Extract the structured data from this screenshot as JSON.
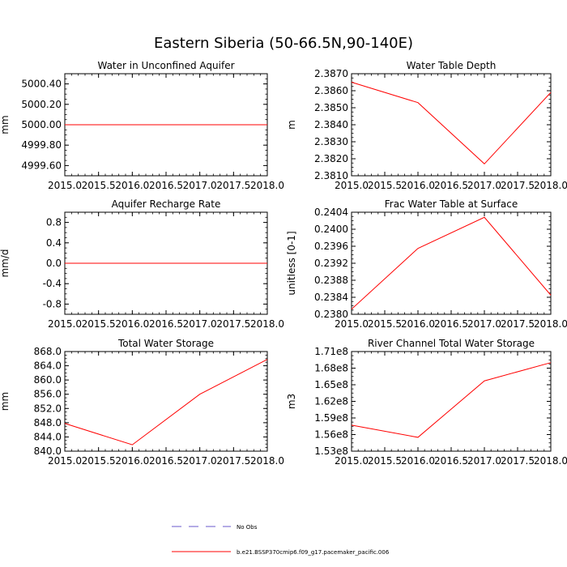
{
  "figure": {
    "title": "Eastern Siberia (50-66.5N,90-140E)"
  },
  "colors": {
    "model_line": "#ff0000",
    "obs_line": "#6a5acd",
    "axis": "#000000",
    "background": "#ffffff"
  },
  "legend": {
    "items": [
      {
        "label": "No Obs",
        "style": "dashed",
        "color": "#6a5acd"
      },
      {
        "label": "b.e21.BSSP370cmip6.f09_g17.pacemaker_pacific.006",
        "style": "solid",
        "color": "#ff0000"
      }
    ]
  },
  "chart_data": [
    {
      "type": "line",
      "title": "Water in Unconfined Aquifer",
      "xlabel": "",
      "ylabel": "mm",
      "xlim": [
        2015.0,
        2018.0
      ],
      "ylim": [
        4999.5,
        5000.5
      ],
      "xticks": [
        "2015.0",
        "2015.5",
        "2016.0",
        "2016.5",
        "2017.0",
        "2017.5",
        "2018.0"
      ],
      "yticks": [
        {
          "value": 4999.6,
          "label": "4999.60"
        },
        {
          "value": 4999.8,
          "label": "4999.80"
        },
        {
          "value": 5000.0,
          "label": "5000.00"
        },
        {
          "value": 5000.2,
          "label": "5000.20"
        },
        {
          "value": 5000.4,
          "label": "5000.40"
        }
      ],
      "series": [
        {
          "x": [
            2015.0,
            2016.0,
            2017.0,
            2018.0
          ],
          "y": [
            5000.0,
            5000.0,
            5000.0,
            5000.0
          ]
        }
      ]
    },
    {
      "type": "line",
      "title": "Water Table Depth",
      "xlabel": "",
      "ylabel": "m",
      "xlim": [
        2015.0,
        2018.0
      ],
      "ylim": [
        2.381,
        2.387
      ],
      "xticks": [
        "2015.0",
        "2015.5",
        "2016.0",
        "2016.5",
        "2017.0",
        "2017.5",
        "2018.0"
      ],
      "yticks": [
        {
          "value": 2.381,
          "label": "2.3810"
        },
        {
          "value": 2.382,
          "label": "2.3820"
        },
        {
          "value": 2.383,
          "label": "2.3830"
        },
        {
          "value": 2.384,
          "label": "2.3840"
        },
        {
          "value": 2.385,
          "label": "2.3850"
        },
        {
          "value": 2.386,
          "label": "2.3860"
        },
        {
          "value": 2.387,
          "label": "2.3870"
        }
      ],
      "series": [
        {
          "x": [
            2015.0,
            2016.0,
            2017.0,
            2018.0
          ],
          "y": [
            2.3865,
            2.3853,
            2.3817,
            2.3859
          ]
        }
      ]
    },
    {
      "type": "line",
      "title": "Aquifer Recharge Rate",
      "xlabel": "",
      "ylabel": "mm/d",
      "xlim": [
        2015.0,
        2018.0
      ],
      "ylim": [
        -1.0,
        1.0
      ],
      "xticks": [
        "2015.0",
        "2015.5",
        "2016.0",
        "2016.5",
        "2017.0",
        "2017.5",
        "2018.0"
      ],
      "yticks": [
        {
          "value": -0.8,
          "label": "-0.8"
        },
        {
          "value": -0.4,
          "label": "-0.4"
        },
        {
          "value": 0.0,
          "label": "0.0"
        },
        {
          "value": 0.4,
          "label": "0.4"
        },
        {
          "value": 0.8,
          "label": "0.8"
        }
      ],
      "series": [
        {
          "x": [
            2015.0,
            2016.0,
            2017.0,
            2018.0
          ],
          "y": [
            0.0,
            0.0,
            0.0,
            0.0
          ]
        }
      ]
    },
    {
      "type": "line",
      "title": "Frac Water Table at Surface",
      "xlabel": "",
      "ylabel": "unitless [0-1]",
      "xlim": [
        2015.0,
        2018.0
      ],
      "ylim": [
        0.238,
        0.2404
      ],
      "xticks": [
        "2015.0",
        "2015.5",
        "2016.0",
        "2016.5",
        "2017.0",
        "2017.5",
        "2018.0"
      ],
      "yticks": [
        {
          "value": 0.238,
          "label": "0.2380"
        },
        {
          "value": 0.2384,
          "label": "0.2384"
        },
        {
          "value": 0.2388,
          "label": "0.2388"
        },
        {
          "value": 0.2392,
          "label": "0.2392"
        },
        {
          "value": 0.2396,
          "label": "0.2396"
        },
        {
          "value": 0.24,
          "label": "0.2400"
        },
        {
          "value": 0.2404,
          "label": "0.2404"
        }
      ],
      "series": [
        {
          "x": [
            2015.0,
            2016.0,
            2017.0,
            2018.0
          ],
          "y": [
            0.23812,
            0.23955,
            0.24028,
            0.23845
          ]
        }
      ]
    },
    {
      "type": "line",
      "title": "Total Water Storage",
      "xlabel": "",
      "ylabel": "mm",
      "xlim": [
        2015.0,
        2018.0
      ],
      "ylim": [
        840.0,
        868.0
      ],
      "xticks": [
        "2015.0",
        "2015.5",
        "2016.0",
        "2016.5",
        "2017.0",
        "2017.5",
        "2018.0"
      ],
      "yticks": [
        {
          "value": 840.0,
          "label": "840.0"
        },
        {
          "value": 844.0,
          "label": "844.0"
        },
        {
          "value": 848.0,
          "label": "848.0"
        },
        {
          "value": 852.0,
          "label": "852.0"
        },
        {
          "value": 856.0,
          "label": "856.0"
        },
        {
          "value": 860.0,
          "label": "860.0"
        },
        {
          "value": 864.0,
          "label": "864.0"
        },
        {
          "value": 868.0,
          "label": "868.0"
        }
      ],
      "series": [
        {
          "x": [
            2015.0,
            2016.0,
            2017.0,
            2018.0
          ],
          "y": [
            847.8,
            841.8,
            856.0,
            865.8
          ]
        }
      ]
    },
    {
      "type": "line",
      "title": "River Channel Total Water Storage",
      "xlabel": "",
      "ylabel": "m3",
      "xlim": [
        2015.0,
        2018.0
      ],
      "ylim": [
        153000000,
        171000000
      ],
      "xticks": [
        "2015.0",
        "2015.5",
        "2016.0",
        "2016.5",
        "2017.0",
        "2017.5",
        "2018.0"
      ],
      "yticks": [
        {
          "value": 153000000,
          "label": "1.53e8"
        },
        {
          "value": 156000000,
          "label": "1.56e8"
        },
        {
          "value": 159000000,
          "label": "1.59e8"
        },
        {
          "value": 162000000,
          "label": "1.62e8"
        },
        {
          "value": 165000000,
          "label": "1.65e8"
        },
        {
          "value": 168000000,
          "label": "1.68e8"
        },
        {
          "value": 171000000,
          "label": "1.71e8"
        }
      ],
      "series": [
        {
          "x": [
            2015.0,
            2016.0,
            2017.0,
            2018.0
          ],
          "y": [
            157700000,
            155500000,
            165700000,
            169000000
          ]
        }
      ]
    }
  ]
}
